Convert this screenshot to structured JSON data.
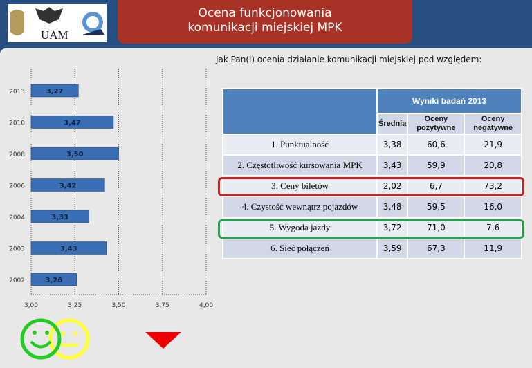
{
  "header": {
    "title_line1": "Ocena funkcjonowania",
    "title_line2": "komunikacji miejskiej MPK",
    "logo_text": "UAM"
  },
  "question": "Jak Pan(i) ocenia działanie komunikacji miejskiej pod względem:",
  "chart_data": {
    "type": "bar",
    "orientation": "horizontal",
    "categories": [
      "2013",
      "2010",
      "2008",
      "2006",
      "2004",
      "2003",
      "2002"
    ],
    "values": [
      3.27,
      3.47,
      3.5,
      3.42,
      3.33,
      3.43,
      3.26
    ],
    "labels": [
      "3,27",
      "3,47",
      "3,50",
      "3,42",
      "3,33",
      "3,43",
      "3,26"
    ],
    "xlim": [
      3.0,
      4.0
    ],
    "xticks": [
      "3,00",
      "3,25",
      "3,50",
      "3,75",
      "4,00"
    ],
    "grid": true,
    "bar_color": "#3a6fb5"
  },
  "table": {
    "group_header": "Wyniki badań 2013",
    "columns": [
      "Średnia",
      "Oceny pozytywne",
      "Oceny negatywne"
    ],
    "rows": [
      {
        "label": "1. Punktualność",
        "avg": "3,38",
        "pos": "60,6",
        "neg": "21,9"
      },
      {
        "label": "2. Częstotliwość kursowania MPK",
        "avg": "3,43",
        "pos": "59,9",
        "neg": "20,8"
      },
      {
        "label": "3. Ceny biletów",
        "avg": "2,02",
        "pos": "6,7",
        "neg": "73,2"
      },
      {
        "label": "4. Czystość wewnątrz pojazdów",
        "avg": "3,48",
        "pos": "59,5",
        "neg": "16,0"
      },
      {
        "label": "5. Wygoda jazdy",
        "avg": "3,72",
        "pos": "71,0",
        "neg": "7,6"
      },
      {
        "label": "6. Sieć połączeń",
        "avg": "3,59",
        "pos": "67,3",
        "neg": "11,9"
      }
    ]
  },
  "colors": {
    "worst": "#cc1f1f",
    "best": "#22a34a"
  }
}
